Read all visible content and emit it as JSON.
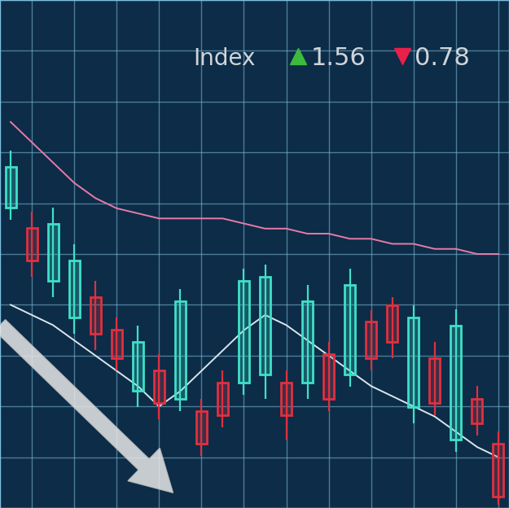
{
  "chart_data": {
    "type": "candlestick",
    "x": [
      1,
      2,
      3,
      4,
      5,
      6,
      7,
      8,
      9,
      10,
      11,
      12,
      13,
      14,
      15,
      16,
      17,
      18,
      19,
      20,
      21,
      22,
      23,
      24
    ],
    "open": [
      59.1,
      55.1,
      44.7,
      37.5,
      41.5,
      35.1,
      23.1,
      27.1,
      21.5,
      19.1,
      24.7,
      24.7,
      26.3,
      24.7,
      24.7,
      30.3,
      26.3,
      36.7,
      39.9,
      19.9,
      29.5,
      13.5,
      21.5,
      12.7
    ],
    "close": [
      67.1,
      48.7,
      55.9,
      48.7,
      34.3,
      29.5,
      32.7,
      20.7,
      40.7,
      12.7,
      18.3,
      44.7,
      45.5,
      18.3,
      40.7,
      21.5,
      43.9,
      29.5,
      32.7,
      37.5,
      20.7,
      35.9,
      16.7,
      2.2
    ],
    "high": [
      70.4,
      58.3,
      59.1,
      51.9,
      44.7,
      37.5,
      35.9,
      30.3,
      43.1,
      21.5,
      27.1,
      47.1,
      47.9,
      27.1,
      43.9,
      32.7,
      47.1,
      38.9,
      41.5,
      39.9,
      32.7,
      39.1,
      24.0,
      15.1
    ],
    "low": [
      56.7,
      45.5,
      41.5,
      34.3,
      31.1,
      27.1,
      19.9,
      17.5,
      19.1,
      10.3,
      15.9,
      22.3,
      21.5,
      13.5,
      21.5,
      19.1,
      23.9,
      27.1,
      29.5,
      16.7,
      18.3,
      11.1,
      14.3,
      0.6
    ],
    "colors": [
      "#3fe0c8",
      "#e0303f",
      "#3fe0c8",
      "#3fe0c8",
      "#e0303f",
      "#e0303f",
      "#3fe0c8",
      "#e0303f",
      "#3fe0c8",
      "#e0303f",
      "#e0303f",
      "#3fe0c8",
      "#3fe0c8",
      "#e0303f",
      "#3fe0c8",
      "#e0303f",
      "#3fe0c8",
      "#e0303f",
      "#e0303f",
      "#3fe0c8",
      "#e0303f",
      "#3fe0c8",
      "#e0303f",
      "#e0303f"
    ],
    "series": [
      {
        "type": "line",
        "color": "#e87aa8",
        "values": [
          76,
          72,
          68,
          64,
          61,
          59,
          58,
          57,
          57,
          57,
          57,
          56,
          55,
          55,
          54,
          54,
          53,
          53,
          52,
          52,
          51,
          51,
          50,
          50
        ]
      },
      {
        "type": "line",
        "color": "#d8e6ec",
        "values": [
          40,
          38,
          36,
          33,
          30,
          27,
          24,
          20,
          23,
          27,
          31,
          35,
          38,
          36,
          33,
          30,
          27,
          24,
          22,
          20,
          18,
          15,
          12,
          10
        ]
      }
    ],
    "annotations": [
      {
        "text": "Index"
      },
      {
        "value": 1.56,
        "marker": "triangle_up",
        "color": "#3dbb3d"
      },
      {
        "value": 0.78,
        "marker": "triangle_down",
        "color": "#e8204a"
      }
    ],
    "xlim": [
      0.5,
      24.5
    ],
    "xticks": [
      2,
      4,
      6,
      8,
      10,
      12,
      14,
      16,
      18,
      20,
      22,
      24
    ],
    "ylim": [
      0,
      100
    ],
    "yticks": [
      0,
      10,
      20,
      30,
      40,
      50,
      60,
      70,
      80,
      90,
      100
    ],
    "grid": true,
    "tick_labels": false
  }
}
